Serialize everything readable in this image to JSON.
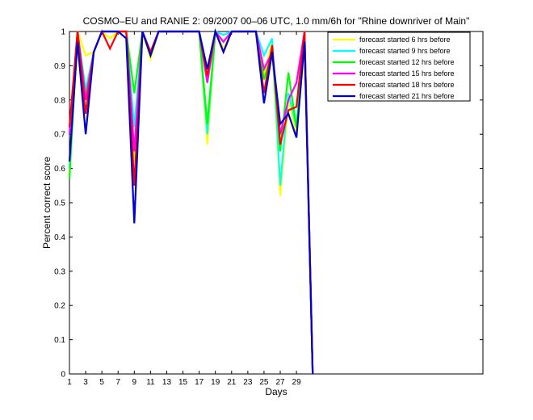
{
  "chart_data": {
    "type": "line",
    "title": "COSMO–EU and RANIE 2: 09/2007 00–06 UTC, 1.0 mm/6h for \"Rhine downriver of Main\"",
    "xlabel": "Days",
    "ylabel": "Percent correct score",
    "xlim": [
      1,
      52
    ],
    "ylim": [
      0,
      1
    ],
    "xticks": [
      1,
      3,
      5,
      7,
      9,
      11,
      13,
      15,
      17,
      19,
      21,
      23,
      25,
      27,
      29
    ],
    "yticks": [
      0,
      0.1,
      0.2,
      0.3,
      0.4,
      0.5,
      0.6,
      0.7,
      0.8,
      0.9,
      1
    ],
    "ytick_labels": [
      "0",
      "0.1",
      "0.2",
      "0.3",
      "0.4",
      "0.5",
      "0.6",
      "0.7",
      "0.8",
      "0.9",
      "1"
    ],
    "grid": false,
    "legend_position": "top-right",
    "x": [
      1,
      2,
      3,
      4,
      5,
      6,
      7,
      8,
      9,
      10,
      11,
      12,
      13,
      14,
      15,
      16,
      17,
      18,
      19,
      20,
      21,
      22,
      23,
      24,
      25,
      26,
      27,
      28,
      29,
      30,
      31
    ],
    "series": [
      {
        "name": "forecast started 6 hrs before",
        "color": "#ffff00",
        "values": [
          0.58,
          1.0,
          0.93,
          0.94,
          1.0,
          0.98,
          1.0,
          1.0,
          0.62,
          1.0,
          0.92,
          1.0,
          1.0,
          1.0,
          1.0,
          1.0,
          1.0,
          0.67,
          1.0,
          0.95,
          1.0,
          1.0,
          1.0,
          1.0,
          0.87,
          0.97,
          0.52,
          0.8,
          0.7,
          1.0,
          0.0
        ]
      },
      {
        "name": "forecast started 9 hrs before",
        "color": "#00ffff",
        "values": [
          0.6,
          1.0,
          0.83,
          0.94,
          1.0,
          1.0,
          1.0,
          1.0,
          0.72,
          1.0,
          0.93,
          1.0,
          1.0,
          1.0,
          1.0,
          1.0,
          1.0,
          0.7,
          1.0,
          0.99,
          1.0,
          1.0,
          1.0,
          1.0,
          0.93,
          0.98,
          0.55,
          0.82,
          0.72,
          1.0,
          0.0
        ]
      },
      {
        "name": "forecast started 12 hrs before",
        "color": "#00ff00",
        "values": [
          0.57,
          1.0,
          0.81,
          0.94,
          1.0,
          1.0,
          1.0,
          1.0,
          0.82,
          1.0,
          0.93,
          1.0,
          1.0,
          1.0,
          1.0,
          1.0,
          1.0,
          0.73,
          1.0,
          0.97,
          1.0,
          1.0,
          1.0,
          1.0,
          0.86,
          0.94,
          0.65,
          0.88,
          0.72,
          1.0,
          0.0
        ]
      },
      {
        "name": "forecast started 15 hrs before",
        "color": "#ff00ff",
        "values": [
          0.7,
          1.0,
          0.8,
          0.94,
          1.0,
          1.0,
          1.0,
          1.0,
          0.65,
          1.0,
          0.94,
          1.0,
          1.0,
          1.0,
          1.0,
          1.0,
          1.0,
          0.85,
          1.0,
          0.97,
          1.0,
          1.0,
          1.0,
          1.0,
          0.89,
          0.94,
          0.7,
          0.8,
          0.85,
          1.0,
          0.0
        ]
      },
      {
        "name": "forecast started 18 hrs before",
        "color": "#ff0000",
        "values": [
          0.72,
          1.0,
          0.76,
          0.94,
          1.0,
          0.95,
          1.0,
          1.0,
          0.55,
          1.0,
          0.94,
          1.0,
          1.0,
          1.0,
          1.0,
          1.0,
          1.0,
          0.87,
          1.0,
          0.94,
          1.0,
          1.0,
          1.0,
          1.0,
          0.82,
          0.96,
          0.67,
          0.77,
          0.78,
          1.0,
          0.0
        ]
      },
      {
        "name": "forecast started 21 hrs before",
        "color": "#0000cc",
        "values": [
          0.62,
          0.97,
          0.7,
          0.94,
          1.0,
          1.0,
          1.0,
          0.98,
          0.44,
          1.0,
          0.93,
          1.0,
          1.0,
          1.0,
          1.0,
          1.0,
          1.0,
          0.89,
          1.0,
          0.94,
          1.0,
          1.0,
          1.0,
          1.0,
          0.79,
          0.94,
          0.73,
          0.76,
          0.69,
          0.97,
          0.0
        ]
      }
    ]
  }
}
